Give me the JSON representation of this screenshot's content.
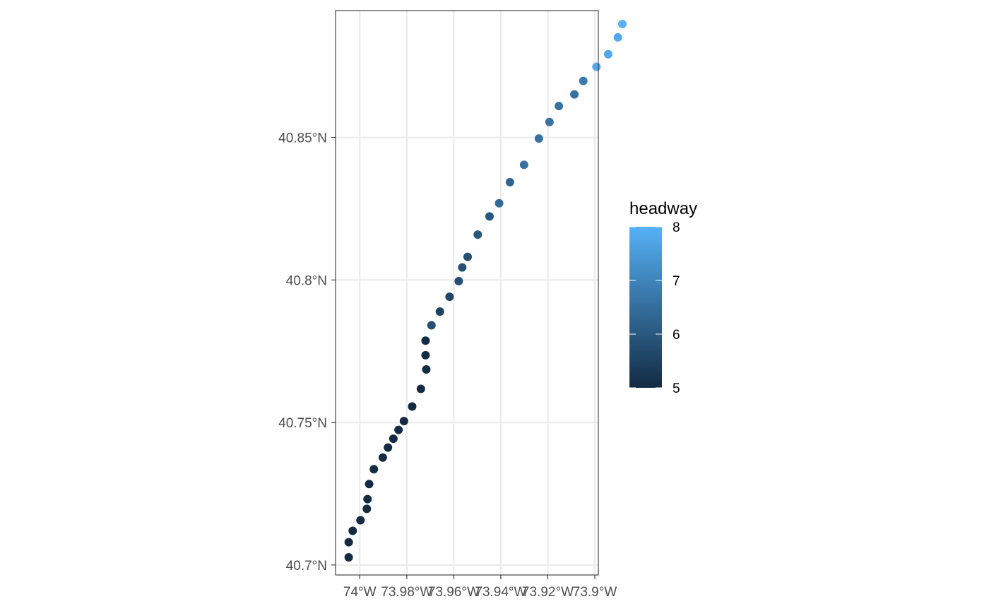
{
  "chart_data": {
    "type": "scatter",
    "title": "",
    "xlabel": "",
    "ylabel": "",
    "grid": true,
    "legend_position": "right",
    "xlim": [
      -74.0103,
      -73.8985
    ],
    "ylim": [
      40.6965,
      40.8945
    ],
    "x_ticks": [
      {
        "value": -74.0,
        "label": "74°W"
      },
      {
        "value": -73.98,
        "label": "73.98°W"
      },
      {
        "value": -73.96,
        "label": "73.96°W"
      },
      {
        "value": -73.94,
        "label": "73.94°W"
      },
      {
        "value": -73.92,
        "label": "73.92°W"
      },
      {
        "value": -73.9,
        "label": "73.9°W"
      }
    ],
    "y_ticks": [
      {
        "value": 40.7,
        "label": "40.7°N"
      },
      {
        "value": 40.75,
        "label": "40.75°N"
      },
      {
        "value": 40.8,
        "label": "40.8°N"
      },
      {
        "value": 40.85,
        "label": "40.85°N"
      }
    ],
    "color_legend": {
      "title": "headway",
      "min": 5,
      "max": 8,
      "low_color": "#132b43",
      "high_color": "#56b1f7",
      "breaks": [
        {
          "value": 5,
          "label": "5"
        },
        {
          "value": 6,
          "label": "6"
        },
        {
          "value": 7,
          "label": "7"
        },
        {
          "value": 8,
          "label": "8"
        }
      ]
    },
    "points": [
      {
        "lon": -74.0047,
        "lat": 40.7027,
        "headway": 5.0
      },
      {
        "lon": -74.0047,
        "lat": 40.708,
        "headway": 5.0
      },
      {
        "lon": -74.003,
        "lat": 40.712,
        "headway": 5.0
      },
      {
        "lon": -73.9997,
        "lat": 40.7157,
        "headway": 5.0
      },
      {
        "lon": -73.997,
        "lat": 40.7197,
        "headway": 5.0
      },
      {
        "lon": -73.9967,
        "lat": 40.7231,
        "headway": 5.0
      },
      {
        "lon": -73.996,
        "lat": 40.7284,
        "headway": 5.0
      },
      {
        "lon": -73.994,
        "lat": 40.7336,
        "headway": 5.0
      },
      {
        "lon": -73.9902,
        "lat": 40.7377,
        "headway": 5.0
      },
      {
        "lon": -73.988,
        "lat": 40.7412,
        "headway": 5.0
      },
      {
        "lon": -73.9857,
        "lat": 40.7443,
        "headway": 5.0
      },
      {
        "lon": -73.9835,
        "lat": 40.7474,
        "headway": 5.0
      },
      {
        "lon": -73.9812,
        "lat": 40.7505,
        "headway": 5.0
      },
      {
        "lon": -73.9777,
        "lat": 40.7556,
        "headway": 5.0
      },
      {
        "lon": -73.974,
        "lat": 40.7618,
        "headway": 5.0
      },
      {
        "lon": -73.9717,
        "lat": 40.7686,
        "headway": 5.0
      },
      {
        "lon": -73.972,
        "lat": 40.7736,
        "headway": 5.0
      },
      {
        "lon": -73.972,
        "lat": 40.7787,
        "headway": 5.0
      },
      {
        "lon": -73.9695,
        "lat": 40.7841,
        "headway": 5.8
      },
      {
        "lon": -73.9659,
        "lat": 40.7889,
        "headway": 5.5
      },
      {
        "lon": -73.9618,
        "lat": 40.7941,
        "headway": 5.6
      },
      {
        "lon": -73.9579,
        "lat": 40.7996,
        "headway": 5.8
      },
      {
        "lon": -73.9564,
        "lat": 40.8044,
        "headway": 5.8
      },
      {
        "lon": -73.9541,
        "lat": 40.8081,
        "headway": 5.8
      },
      {
        "lon": -73.9498,
        "lat": 40.8159,
        "headway": 6.0
      },
      {
        "lon": -73.9448,
        "lat": 40.8223,
        "headway": 6.0
      },
      {
        "lon": -73.9407,
        "lat": 40.8269,
        "headway": 6.4
      },
      {
        "lon": -73.9361,
        "lat": 40.8343,
        "headway": 6.3
      },
      {
        "lon": -73.9301,
        "lat": 40.8404,
        "headway": 6.6
      },
      {
        "lon": -73.9238,
        "lat": 40.8496,
        "headway": 6.6
      },
      {
        "lon": -73.9193,
        "lat": 40.8554,
        "headway": 6.6
      },
      {
        "lon": -73.9153,
        "lat": 40.861,
        "headway": 6.6
      },
      {
        "lon": -73.9087,
        "lat": 40.8651,
        "headway": 6.6
      },
      {
        "lon": -73.9049,
        "lat": 40.8698,
        "headway": 6.8
      },
      {
        "lon": -73.8993,
        "lat": 40.8748,
        "headway": 7.8
      },
      {
        "lon": -73.8943,
        "lat": 40.8792,
        "headway": 7.8
      },
      {
        "lon": -73.8902,
        "lat": 40.8851,
        "headway": 7.8
      },
      {
        "lon": -73.8883,
        "lat": 40.8898,
        "headway": 8.0
      }
    ]
  }
}
